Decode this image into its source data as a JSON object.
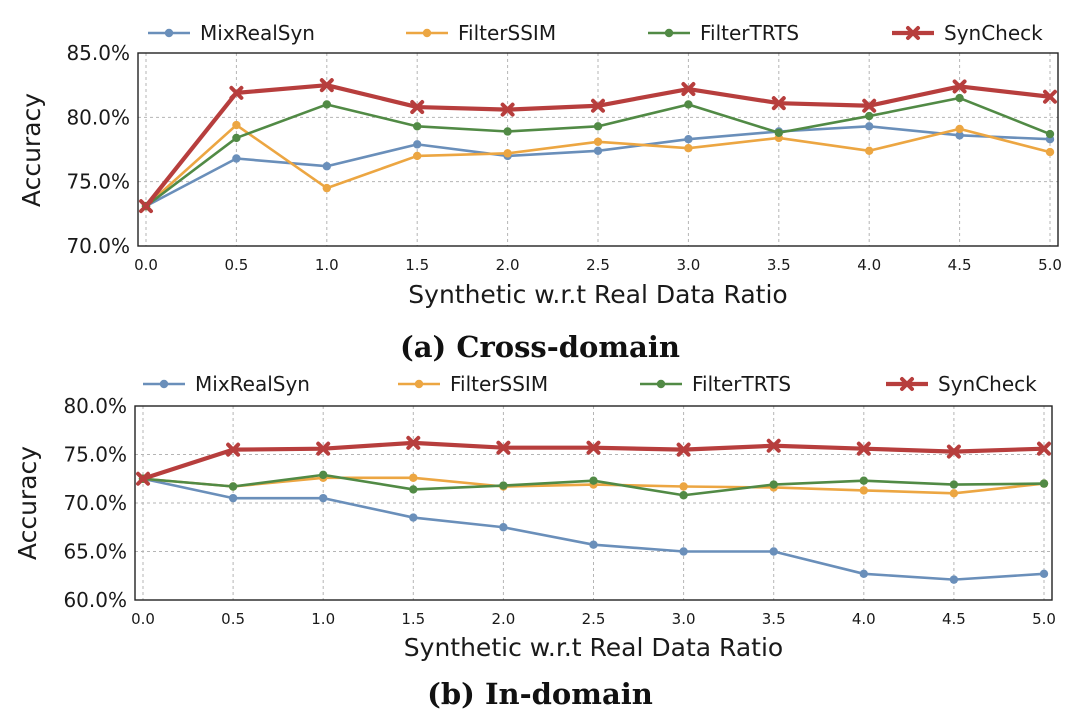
{
  "colors": {
    "MixRealSyn": "#6a8fba",
    "FilterSSIM": "#eca642",
    "FilterTRTS": "#518a45",
    "SynCheck": "#b73e3d"
  },
  "chart_data": [
    {
      "type": "line",
      "caption": "(a) Cross-domain",
      "xlabel": "Synthetic w.r.t Real Data Ratio",
      "ylabel": "Accuracy",
      "x": [
        0.0,
        0.5,
        1.0,
        1.5,
        2.0,
        2.5,
        3.0,
        3.5,
        4.0,
        4.5,
        5.0
      ],
      "x_tick_labels": [
        "0.0",
        "0.5",
        "1.0",
        "1.5",
        "2.0",
        "2.5",
        "3.0",
        "3.5",
        "4.0",
        "4.5",
        "5.0"
      ],
      "ylim": [
        70.0,
        85.0
      ],
      "y_ticks": [
        70.0,
        75.0,
        80.0,
        85.0
      ],
      "y_tick_labels": [
        "70.0%",
        "75.0%",
        "80.0%",
        "85.0%"
      ],
      "grid": true,
      "legend_position": "top",
      "series": [
        {
          "name": "MixRealSyn",
          "values": [
            73.1,
            76.8,
            76.2,
            77.9,
            77.0,
            77.4,
            78.3,
            78.9,
            79.3,
            78.6,
            78.3
          ]
        },
        {
          "name": "FilterSSIM",
          "values": [
            73.1,
            79.4,
            74.5,
            77.0,
            77.2,
            78.1,
            77.6,
            78.4,
            77.4,
            79.1,
            77.3
          ]
        },
        {
          "name": "FilterTRTS",
          "values": [
            73.1,
            78.4,
            81.0,
            79.3,
            78.9,
            79.3,
            81.0,
            78.8,
            80.1,
            81.5,
            78.7
          ]
        },
        {
          "name": "SynCheck",
          "values": [
            73.1,
            81.9,
            82.5,
            80.8,
            80.6,
            80.9,
            82.2,
            81.1,
            80.9,
            82.4,
            81.6
          ]
        }
      ]
    },
    {
      "type": "line",
      "caption": "(b) In-domain",
      "xlabel": "Synthetic w.r.t Real Data Ratio",
      "ylabel": "Accuracy",
      "x": [
        0.0,
        0.5,
        1.0,
        1.5,
        2.0,
        2.5,
        3.0,
        3.5,
        4.0,
        4.5,
        5.0
      ],
      "x_tick_labels": [
        "0.0",
        "0.5",
        "1.0",
        "1.5",
        "2.0",
        "2.5",
        "3.0",
        "3.5",
        "4.0",
        "4.5",
        "5.0"
      ],
      "ylim": [
        60.0,
        80.0
      ],
      "y_ticks": [
        60.0,
        65.0,
        70.0,
        75.0,
        80.0
      ],
      "y_tick_labels": [
        "60.0%",
        "65.0%",
        "70.0%",
        "75.0%",
        "80.0%"
      ],
      "grid": true,
      "legend_position": "top",
      "series": [
        {
          "name": "MixRealSyn",
          "values": [
            72.5,
            70.5,
            70.5,
            68.5,
            67.5,
            65.7,
            65.0,
            65.0,
            62.7,
            62.1,
            62.7
          ]
        },
        {
          "name": "FilterSSIM",
          "values": [
            72.5,
            71.7,
            72.6,
            72.6,
            71.7,
            71.9,
            71.7,
            71.6,
            71.3,
            71.0,
            72.0
          ]
        },
        {
          "name": "FilterTRTS",
          "values": [
            72.5,
            71.7,
            72.9,
            71.4,
            71.8,
            72.3,
            70.8,
            71.9,
            72.3,
            71.9,
            72.0
          ]
        },
        {
          "name": "SynCheck",
          "values": [
            72.5,
            75.5,
            75.6,
            76.2,
            75.7,
            75.7,
            75.5,
            75.9,
            75.6,
            75.3,
            75.6
          ]
        }
      ]
    }
  ]
}
